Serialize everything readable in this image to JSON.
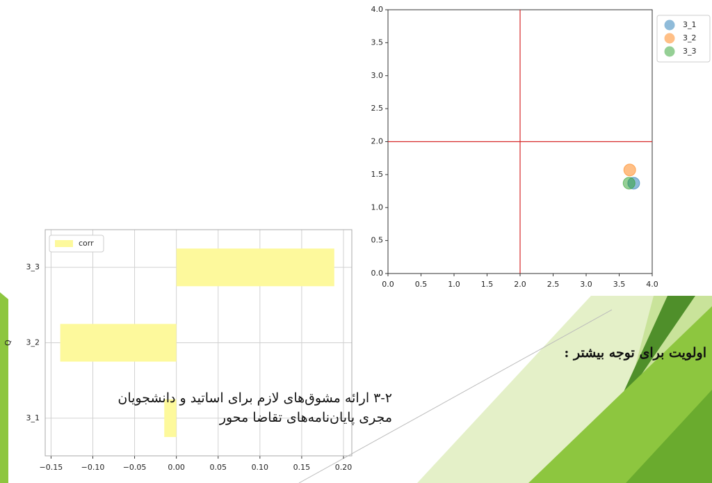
{
  "chart_data": [
    {
      "type": "bar",
      "orientation": "horizontal",
      "ylabel": "Q",
      "categories": [
        "3_1",
        "3_2",
        "3_3"
      ],
      "series": [
        {
          "name": "corr",
          "color": "#fdf99c",
          "values": [
            -0.0145,
            -0.139,
            0.189
          ]
        }
      ],
      "xlim": [
        -0.157,
        0.21
      ],
      "xticks": [
        {
          "value": -0.15,
          "label": "−0.15"
        },
        {
          "value": -0.1,
          "label": "−0.10"
        },
        {
          "value": -0.05,
          "label": "−0.05"
        },
        {
          "value": 0,
          "label": "0.00"
        },
        {
          "value": 0.05,
          "label": "0.05"
        },
        {
          "value": 0.1,
          "label": "0.10"
        },
        {
          "value": 0.15,
          "label": "0.15"
        },
        {
          "value": 0.2,
          "label": "0.20"
        }
      ],
      "grid": true,
      "legend": "upper-left"
    },
    {
      "type": "scatter",
      "series": [
        {
          "name": "3_1",
          "color": "#1f77b4",
          "x": [
            3.72
          ],
          "y": [
            1.37
          ]
        },
        {
          "name": "3_2",
          "color": "#ff7f0e",
          "x": [
            3.66
          ],
          "y": [
            1.57
          ]
        },
        {
          "name": "3_3",
          "color": "#2ca02c",
          "x": [
            3.65
          ],
          "y": [
            1.37
          ]
        }
      ],
      "xlim": [
        0,
        4
      ],
      "ylim": [
        0,
        4
      ],
      "xticks": [
        {
          "value": 0,
          "label": "0.0"
        },
        {
          "value": 0.5,
          "label": "0.5"
        },
        {
          "value": 1,
          "label": "1.0"
        },
        {
          "value": 1.5,
          "label": "1.5"
        },
        {
          "value": 2,
          "label": "2.0"
        },
        {
          "value": 2.5,
          "label": "2.5"
        },
        {
          "value": 3,
          "label": "3.0"
        },
        {
          "value": 3.5,
          "label": "3.5"
        },
        {
          "value": 4,
          "label": "4.0"
        }
      ],
      "yticks": [
        {
          "value": 0,
          "label": "0.0"
        },
        {
          "value": 0.5,
          "label": "0.5"
        },
        {
          "value": 1,
          "label": "1.0"
        },
        {
          "value": 1.5,
          "label": "1.5"
        },
        {
          "value": 2,
          "label": "2.0"
        },
        {
          "value": 2.5,
          "label": "2.5"
        },
        {
          "value": 3,
          "label": "3.0"
        },
        {
          "value": 3.5,
          "label": "3.5"
        },
        {
          "value": 4,
          "label": "4.0"
        }
      ],
      "reference_lines": {
        "x": [
          2
        ],
        "y": [
          2
        ],
        "color": "#d62728"
      },
      "grid": false,
      "legend": "outside-upper-right"
    }
  ],
  "slide_text": {
    "heading": "اولویت برای توجه بیشتر :",
    "body": [
      "۳-۲ ارائه مشوق‌های لازم برای اساتید و دانشجویان",
      "مجری پایان‌نامه‌های تقاضا محور"
    ]
  }
}
